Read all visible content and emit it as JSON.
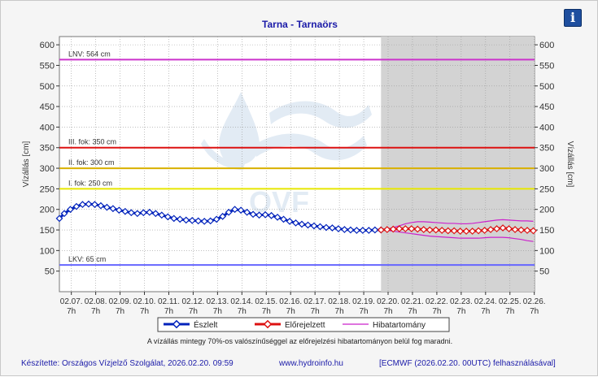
{
  "title": "Tarna - Tarnaörs",
  "info_icon": "i",
  "y_label_left": "Vízállás [cm]",
  "y_label_right": "Vízállás [cm]",
  "note": "A vízállás mintegy 70%-os valószínűséggel az előrejelzési hibatartományon belül fog maradni.",
  "footer": {
    "left": "Készítette: Országos Vízjelző Szolgálat, 2026.02.20. 09:59",
    "center": "www.hydroinfo.hu",
    "right": "[ECMWF (2026.02.20. 00UTC) felhasználásával]"
  },
  "colors": {
    "observed": "#0022bb",
    "forecast": "#dd1111",
    "error_band": "#cc22cc",
    "lnv": "#cc33cc",
    "fok3": "#dd1111",
    "fok2": "#d8b000",
    "fok1": "#e8e800",
    "lkv": "#6666ff",
    "forecast_bg": "#d3d3d3"
  },
  "chart_data": {
    "type": "line",
    "ylim": [
      0,
      620
    ],
    "yticks": [
      50,
      100,
      150,
      200,
      250,
      300,
      350,
      400,
      450,
      500,
      550,
      600
    ],
    "x_start_day": 6.8,
    "x_end_day": 26.3,
    "forecast_start_day": 20.0,
    "xlabels": [
      {
        "date": "02.07.",
        "hour": "7h"
      },
      {
        "date": "02.08.",
        "hour": "7h"
      },
      {
        "date": "02.09.",
        "hour": "7h"
      },
      {
        "date": "02.10.",
        "hour": "7h"
      },
      {
        "date": "02.11.",
        "hour": "7h"
      },
      {
        "date": "02.12.",
        "hour": "7h"
      },
      {
        "date": "02.13.",
        "hour": "7h"
      },
      {
        "date": "02.14.",
        "hour": "7h"
      },
      {
        "date": "02.15.",
        "hour": "7h"
      },
      {
        "date": "02.16.",
        "hour": "7h"
      },
      {
        "date": "02.17.",
        "hour": "7h"
      },
      {
        "date": "02.18.",
        "hour": "7h"
      },
      {
        "date": "02.19.",
        "hour": "7h"
      },
      {
        "date": "02.20.",
        "hour": "7h"
      },
      {
        "date": "02.21.",
        "hour": "7h"
      },
      {
        "date": "02.22.",
        "hour": "7h"
      },
      {
        "date": "02.23.",
        "hour": "7h"
      },
      {
        "date": "02.24.",
        "hour": "7h"
      },
      {
        "date": "02.25.",
        "hour": "7h"
      },
      {
        "date": "02.26.",
        "hour": "7h"
      }
    ],
    "reference_lines": [
      {
        "label": "LNV: 564 cm",
        "value": 564,
        "color_key": "lnv"
      },
      {
        "label": "III. fok: 350 cm",
        "value": 350,
        "color_key": "fok3"
      },
      {
        "label": "II. fok: 300 cm",
        "value": 300,
        "color_key": "fok2"
      },
      {
        "label": "I. fok: 250 cm",
        "value": 250,
        "color_key": "fok1"
      },
      {
        "label": "LKV: 65 cm",
        "value": 65,
        "color_key": "lkv"
      }
    ],
    "series": [
      {
        "name": "Észlelt",
        "x": [
          6.8,
          7.0,
          7.25,
          7.5,
          7.75,
          8.0,
          8.25,
          8.5,
          8.75,
          9.0,
          9.25,
          9.5,
          9.75,
          10.0,
          10.25,
          10.5,
          10.75,
          11.0,
          11.25,
          11.5,
          11.75,
          12.0,
          12.25,
          12.5,
          12.75,
          13.0,
          13.25,
          13.5,
          13.75,
          14.0,
          14.25,
          14.5,
          14.75,
          15.0,
          15.25,
          15.5,
          15.75,
          16.0,
          16.25,
          16.5,
          16.75,
          17.0,
          17.25,
          17.5,
          17.75,
          18.0,
          18.25,
          18.5,
          18.75,
          19.0,
          19.25,
          19.5,
          19.75,
          20.0
        ],
        "y": [
          178,
          190,
          200,
          207,
          212,
          213,
          212,
          209,
          205,
          202,
          198,
          195,
          192,
          190,
          192,
          193,
          190,
          186,
          182,
          178,
          176,
          174,
          173,
          172,
          171,
          172,
          176,
          183,
          193,
          200,
          198,
          193,
          188,
          186,
          187,
          185,
          181,
          176,
          171,
          167,
          164,
          162,
          160,
          158,
          156,
          155,
          153,
          151,
          150,
          149,
          149,
          149,
          150,
          150
        ]
      },
      {
        "name": "Előrejelzett",
        "x": [
          20.0,
          20.25,
          20.5,
          20.75,
          21.0,
          21.25,
          21.5,
          21.75,
          22.0,
          22.25,
          22.5,
          22.75,
          23.0,
          23.25,
          23.5,
          23.75,
          24.0,
          24.25,
          24.5,
          24.75,
          25.0,
          25.25,
          25.5,
          25.75,
          26.0,
          26.25
        ],
        "y": [
          150,
          151,
          152,
          153,
          153,
          153,
          152,
          151,
          150,
          150,
          149,
          148,
          148,
          147,
          147,
          147,
          148,
          149,
          151,
          153,
          155,
          153,
          151,
          150,
          149,
          148
        ]
      },
      {
        "name": "Hibatartomány",
        "upper": [
          150,
          152,
          156,
          160,
          165,
          168,
          170,
          170,
          169,
          168,
          167,
          166,
          166,
          165,
          165,
          166,
          168,
          170,
          172,
          174,
          175,
          174,
          173,
          172,
          172,
          171
        ],
        "lower": [
          150,
          149,
          147,
          145,
          143,
          141,
          139,
          137,
          135,
          134,
          133,
          132,
          131,
          130,
          130,
          130,
          130,
          131,
          132,
          132,
          132,
          131,
          129,
          127,
          124,
          122
        ]
      }
    ]
  }
}
